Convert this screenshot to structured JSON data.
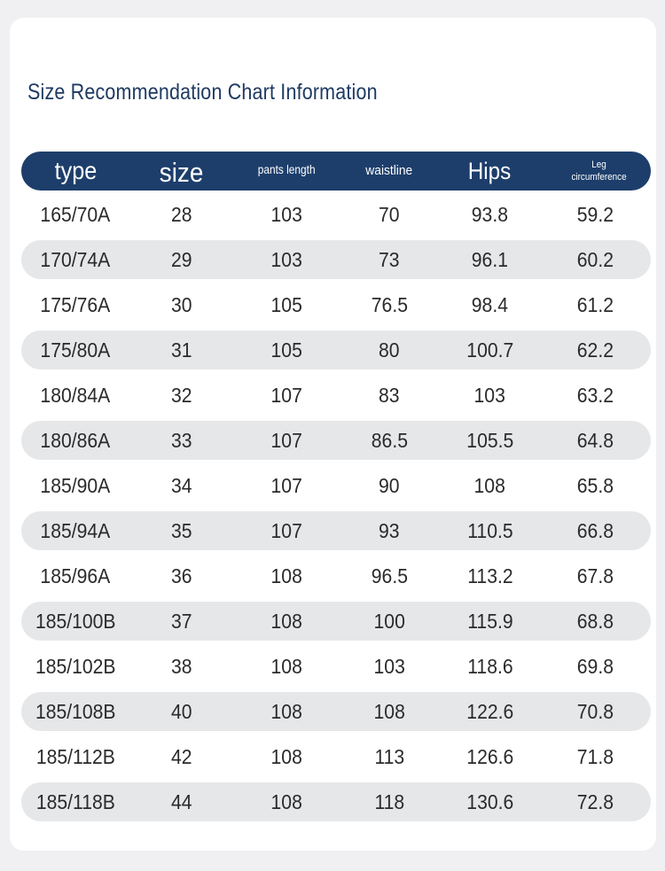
{
  "title": "Size Recommendation Chart Information",
  "headers": {
    "type": "type",
    "size": "size",
    "pants_length": "pants length",
    "waistline": "waistline",
    "hips": "Hips",
    "leg_line1": "Leg",
    "leg_line2": "circumference"
  },
  "colors": {
    "header_bg": "#1d3e6b",
    "title": "#1f3a63",
    "stripe": "#e6e7e9"
  },
  "rows": [
    [
      "165/70A",
      "28",
      "103",
      "70",
      "93.8",
      "59.2"
    ],
    [
      "170/74A",
      "29",
      "103",
      "73",
      "96.1",
      "60.2"
    ],
    [
      "175/76A",
      "30",
      "105",
      "76.5",
      "98.4",
      "61.2"
    ],
    [
      "175/80A",
      "31",
      "105",
      "80",
      "100.7",
      "62.2"
    ],
    [
      "180/84A",
      "32",
      "107",
      "83",
      "103",
      "63.2"
    ],
    [
      "180/86A",
      "33",
      "107",
      "86.5",
      "105.5",
      "64.8"
    ],
    [
      "185/90A",
      "34",
      "107",
      "90",
      "108",
      "65.8"
    ],
    [
      "185/94A",
      "35",
      "107",
      "93",
      "110.5",
      "66.8"
    ],
    [
      "185/96A",
      "36",
      "108",
      "96.5",
      "113.2",
      "67.8"
    ],
    [
      "185/100B",
      "37",
      "108",
      "100",
      "115.9",
      "68.8"
    ],
    [
      "185/102B",
      "38",
      "108",
      "103",
      "118.6",
      "69.8"
    ],
    [
      "185/108B",
      "40",
      "108",
      "108",
      "122.6",
      "70.8"
    ],
    [
      "185/112B",
      "42",
      "108",
      "113",
      "126.6",
      "71.8"
    ],
    [
      "185/118B",
      "44",
      "108",
      "118",
      "130.6",
      "72.8"
    ]
  ]
}
